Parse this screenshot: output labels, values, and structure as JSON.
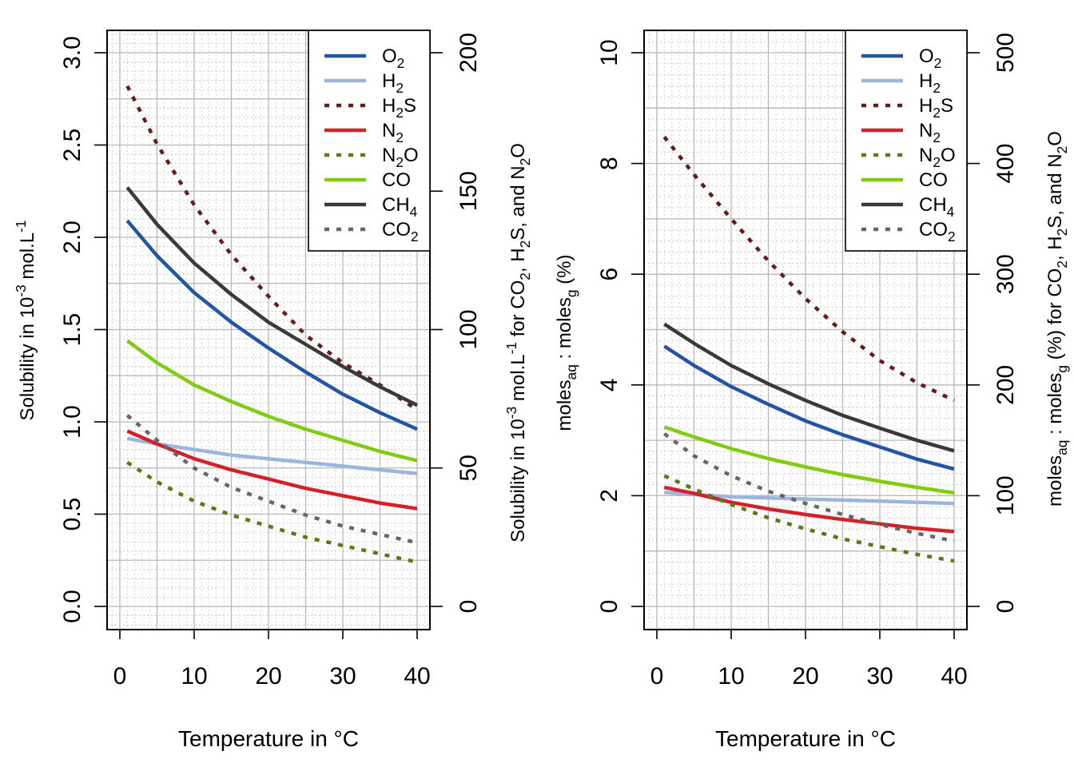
{
  "chart_data": [
    {
      "type": "line",
      "xlabel": "Temperature in °C",
      "ylabel": {
        "pre": "Solubility in 10",
        "sup": "-3",
        "post": " mol.L",
        "sup2": "-1"
      },
      "ylabel_right": {
        "pre": "Solubility in 10",
        "sup1": "-3",
        "mid": " mol.L",
        "sup2": "-1",
        "post": " for CO",
        "sub1": "2",
        "post2": ", H",
        "sub2": "2",
        "post3": "S, and N",
        "sub3": "2",
        "post4": "O"
      },
      "xlim": [
        1,
        40
      ],
      "ylim_left": [
        0,
        3
      ],
      "ylim_right": [
        0,
        200
      ],
      "x_ticks": [
        "0",
        "10",
        "20",
        "30",
        "40"
      ],
      "y_ticks_left": [
        "0.0",
        "0.5",
        "1.0",
        "1.5",
        "2.0",
        "2.5",
        "3.0"
      ],
      "y_ticks_right": [
        "0",
        "50",
        "100",
        "150",
        "200"
      ],
      "legend_position": "top-right",
      "grid": true,
      "x": [
        1,
        5,
        10,
        15,
        20,
        25,
        30,
        35,
        40
      ],
      "series": [
        {
          "key": "O2",
          "label": "O",
          "sub": "2",
          "color": "#2255a4",
          "dash": "solid",
          "axis": "left",
          "values": [
            2.09,
            1.9,
            1.7,
            1.54,
            1.4,
            1.27,
            1.15,
            1.05,
            0.96
          ]
        },
        {
          "key": "H2",
          "label": "H",
          "sub": "2",
          "color": "#9bb5de",
          "dash": "solid",
          "axis": "left",
          "values": [
            0.91,
            0.88,
            0.85,
            0.82,
            0.8,
            0.78,
            0.76,
            0.74,
            0.72
          ]
        },
        {
          "key": "H2S",
          "label": "H",
          "sub": "2",
          "post": "S",
          "color": "#6b1a1a",
          "dash": "dotted",
          "axis": "right",
          "values": [
            188,
            167,
            145,
            127,
            112,
            98,
            88,
            80,
            71
          ]
        },
        {
          "key": "N2",
          "label": "N",
          "sub": "2",
          "color": "#d42127",
          "dash": "solid",
          "axis": "left",
          "values": [
            0.95,
            0.88,
            0.8,
            0.74,
            0.69,
            0.64,
            0.6,
            0.56,
            0.53
          ]
        },
        {
          "key": "N2O",
          "label": "N",
          "sub": "2",
          "post": "O",
          "color": "#5a7a12",
          "dash": "dotted",
          "axis": "right",
          "values": [
            52,
            45,
            38,
            33,
            29,
            25,
            22,
            19,
            16
          ]
        },
        {
          "key": "CO",
          "label": "CO",
          "sub": "",
          "color": "#80cc14",
          "dash": "solid",
          "axis": "left",
          "values": [
            1.44,
            1.32,
            1.2,
            1.11,
            1.03,
            0.96,
            0.9,
            0.84,
            0.79
          ]
        },
        {
          "key": "CH4",
          "label": "CH",
          "sub": "4",
          "color": "#3a3a3a",
          "dash": "solid",
          "axis": "left",
          "values": [
            2.27,
            2.07,
            1.86,
            1.69,
            1.54,
            1.42,
            1.3,
            1.19,
            1.09
          ]
        },
        {
          "key": "CO2",
          "label": "CO",
          "sub": "2",
          "color": "#666666",
          "dash": "dotted",
          "axis": "right",
          "values": [
            69,
            60,
            50,
            43,
            38,
            33,
            29,
            26,
            23
          ]
        }
      ]
    },
    {
      "type": "line",
      "xlabel": "Temperature in °C",
      "ylabel": {
        "pre": "moles",
        "sub1": "aq",
        "mid": " : moles",
        "sub2": "g",
        "post": " (%)"
      },
      "ylabel_right": {
        "pre": "moles",
        "sub1": "aq",
        "mid": " : moles",
        "sub2": "g",
        "post": " (%) for CO",
        "sub3": "2",
        "post2": ", H",
        "sub4": "2",
        "post3": "S, and N",
        "sub5": "2",
        "post4": "O"
      },
      "xlim": [
        1,
        40
      ],
      "ylim_left": [
        0,
        10
      ],
      "ylim_right": [
        0,
        500
      ],
      "x_ticks": [
        "0",
        "10",
        "20",
        "30",
        "40"
      ],
      "y_ticks_left": [
        "0",
        "2",
        "4",
        "6",
        "8",
        "10"
      ],
      "y_ticks_right": [
        "0",
        "100",
        "200",
        "300",
        "400",
        "500"
      ],
      "legend_position": "top-right",
      "grid": true,
      "x": [
        1,
        5,
        10,
        15,
        20,
        25,
        30,
        35,
        40
      ],
      "series": [
        {
          "key": "O2",
          "label": "O",
          "sub": "2",
          "color": "#2255a4",
          "dash": "solid",
          "axis": "left",
          "values": [
            4.7,
            4.35,
            3.97,
            3.65,
            3.35,
            3.1,
            2.88,
            2.66,
            2.48
          ]
        },
        {
          "key": "H2",
          "label": "H",
          "sub": "2",
          "color": "#9bb5de",
          "dash": "solid",
          "axis": "left",
          "values": [
            2.06,
            2.02,
            1.98,
            1.96,
            1.94,
            1.92,
            1.9,
            1.88,
            1.86
          ]
        },
        {
          "key": "H2S",
          "label": "H",
          "sub": "2",
          "post": "S",
          "color": "#6b1a1a",
          "dash": "dotted",
          "axis": "right",
          "values": [
            424,
            390,
            350,
            312,
            278,
            248,
            222,
            202,
            186
          ]
        },
        {
          "key": "N2",
          "label": "N",
          "sub": "2",
          "color": "#d42127",
          "dash": "solid",
          "axis": "left",
          "values": [
            2.15,
            2.04,
            1.88,
            1.76,
            1.66,
            1.57,
            1.49,
            1.41,
            1.35
          ]
        },
        {
          "key": "N2O",
          "label": "N",
          "sub": "2",
          "post": "O",
          "color": "#5a7a12",
          "dash": "dotted",
          "axis": "right",
          "values": [
            118,
            106,
            92,
            80,
            70,
            61,
            54,
            47,
            41
          ]
        },
        {
          "key": "CO",
          "label": "CO",
          "sub": "",
          "color": "#80cc14",
          "dash": "solid",
          "axis": "left",
          "values": [
            3.24,
            3.06,
            2.85,
            2.67,
            2.52,
            2.38,
            2.26,
            2.15,
            2.05
          ]
        },
        {
          "key": "CH4",
          "label": "CH",
          "sub": "4",
          "color": "#3a3a3a",
          "dash": "solid",
          "axis": "left",
          "values": [
            5.1,
            4.75,
            4.35,
            4.02,
            3.72,
            3.45,
            3.22,
            3.0,
            2.81
          ]
        },
        {
          "key": "CO2",
          "label": "CO",
          "sub": "2",
          "color": "#666666",
          "dash": "dotted",
          "axis": "right",
          "values": [
            156,
            136,
            118,
            104,
            93,
            83,
            74,
            66,
            59
          ]
        }
      ]
    }
  ]
}
